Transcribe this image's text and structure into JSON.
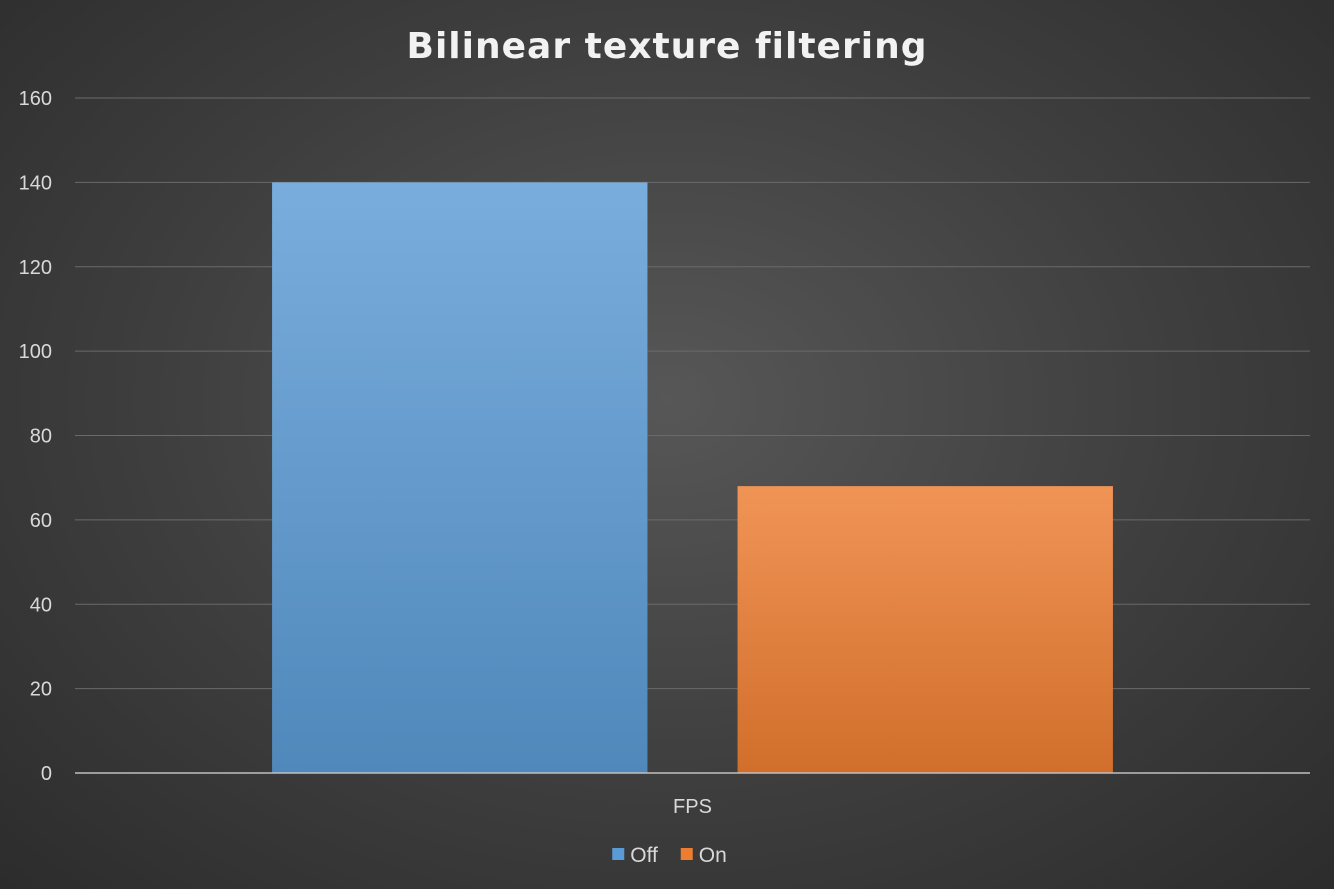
{
  "chart_data": {
    "type": "bar",
    "title": "Bilinear texture filtering",
    "categories": [
      "FPS"
    ],
    "series": [
      {
        "name": "Off",
        "values": [
          140
        ],
        "color": "#5b9bd5"
      },
      {
        "name": "On",
        "values": [
          68
        ],
        "color": "#ed7d31"
      }
    ],
    "ylim": [
      0,
      160
    ],
    "yticks": [
      0,
      20,
      40,
      60,
      80,
      100,
      120,
      140,
      160
    ],
    "xlabel": "",
    "ylabel": "",
    "grid": true,
    "legend_position": "bottom"
  }
}
